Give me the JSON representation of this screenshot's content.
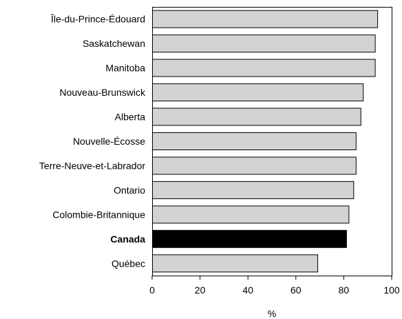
{
  "chart_data": {
    "type": "bar",
    "orientation": "horizontal",
    "categories": [
      "Île-du-Prince-Édouard",
      "Saskatchewan",
      "Manitoba",
      "Nouveau-Brunswick",
      "Alberta",
      "Nouvelle-Écosse",
      "Terre-Neuve-et-Labrador",
      "Ontario",
      "Colombie-Britannique",
      "Canada",
      "Québec"
    ],
    "values": [
      94,
      93,
      93,
      88,
      87,
      85,
      85,
      84,
      82,
      81,
      69
    ],
    "highlight": "Canada",
    "title": "",
    "xlabel": "%",
    "ylabel": "",
    "xlim": [
      0,
      100
    ],
    "xticks": [
      0,
      20,
      40,
      60,
      80,
      100
    ],
    "grid": false,
    "legend": "none",
    "colors": {
      "bar": "#d3d3d3",
      "highlight": "#000000",
      "outline": "#000000"
    }
  }
}
